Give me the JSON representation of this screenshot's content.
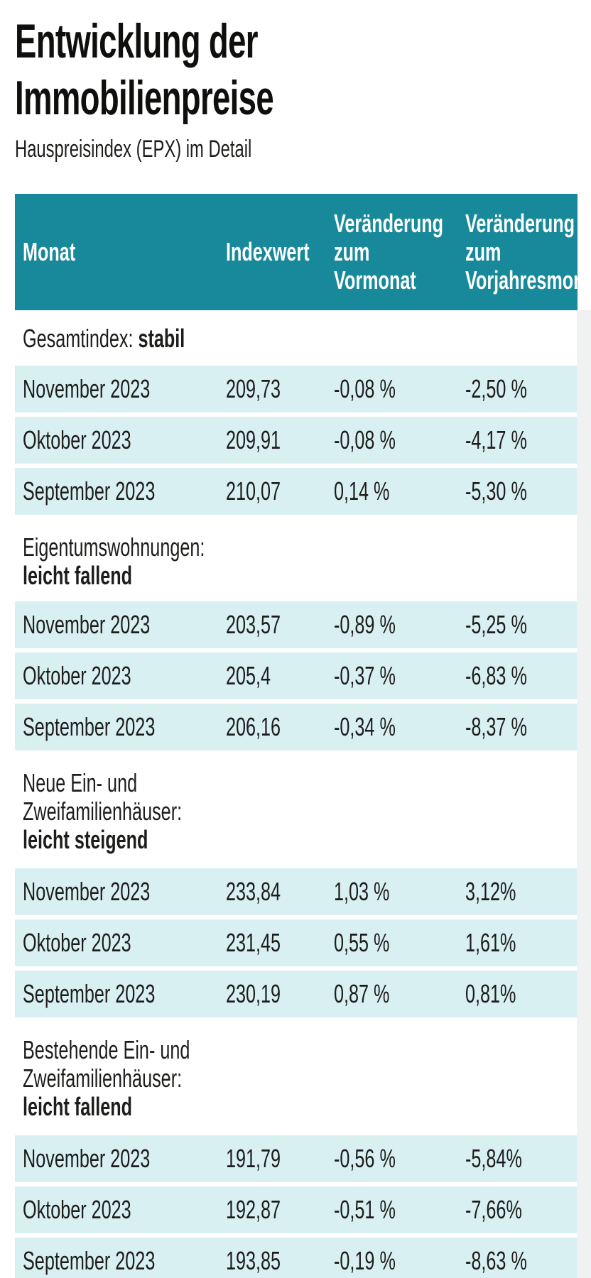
{
  "colors": {
    "header_teal": "#17899a",
    "row_cyan": "#d9f0f3",
    "edge_gray": "#f0f1f1",
    "text": "#1d1d1b"
  },
  "chart_data": {
    "type": "table",
    "title_line1": "Entwicklung der",
    "title_line2": "Immobilienpreise",
    "subtitle": "Hauspreisindex (EPX) im Detail",
    "columns": {
      "col1": "Monat",
      "col2": "Indexwert",
      "col3_lines": [
        "Veränderung",
        "zum",
        "Vormonat"
      ],
      "col4_lines": [
        "Veränderung",
        "zum",
        "Vorjahresmonat"
      ]
    },
    "sections": [
      {
        "label_lines": [
          "Gesamtindex:"
        ],
        "status": "stabil",
        "rows": [
          {
            "cells": [
              "November 2023",
              "209,73",
              "-0,08 %",
              "-2,50 %"
            ]
          },
          {
            "cells": [
              "Oktober 2023",
              "209,91",
              "-0,08 %",
              "-4,17 %"
            ]
          },
          {
            "cells": [
              "September 2023",
              "210,07",
              "0,14 %",
              "-5,30 %"
            ]
          }
        ]
      },
      {
        "label_lines": [
          "Eigentumswohnungen:"
        ],
        "status": "leicht fallend",
        "rows": [
          {
            "cells": [
              "November 2023",
              "203,57",
              "-0,89 %",
              "-5,25 %"
            ]
          },
          {
            "cells": [
              "Oktober 2023",
              "205,4",
              "-0,37 %",
              "-6,83 %"
            ]
          },
          {
            "cells": [
              "September 2023",
              "206,16",
              "-0,34 %",
              "-8,37 %"
            ]
          }
        ]
      },
      {
        "label_lines": [
          "Neue Ein- und",
          "Zweifamilienhäuser:"
        ],
        "status": "leicht steigend",
        "rows": [
          {
            "cells": [
              "November 2023",
              "233,84",
              "1,03 %",
              "3,12%"
            ]
          },
          {
            "cells": [
              "Oktober 2023",
              "231,45",
              "0,55 %",
              "1,61%"
            ]
          },
          {
            "cells": [
              "September 2023",
              "230,19",
              "0,87 %",
              "0,81%"
            ]
          }
        ]
      },
      {
        "label_lines": [
          "Bestehende Ein- und",
          "Zweifamilienhäuser:"
        ],
        "status": "leicht fallend",
        "rows": [
          {
            "cells": [
              "November 2023",
              "191,79",
              "-0,56 %",
              "-5,84%"
            ]
          },
          {
            "cells": [
              "Oktober 2023",
              "192,87",
              "-0,51 %",
              "-7,66%"
            ]
          },
          {
            "cells": [
              "September 2023",
              "193,85",
              "-0,19 %",
              "-8,63 %"
            ]
          }
        ]
      }
    ]
  }
}
